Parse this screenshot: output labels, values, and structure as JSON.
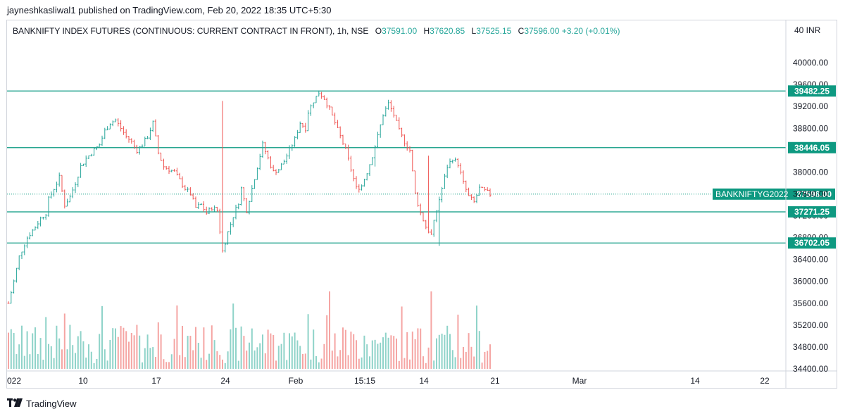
{
  "published": "jayneshkasliwal1 published on TradingView.com, Feb 20, 2022 18:35 UTC+5:30",
  "legend": {
    "symbol": "BANKNIFTY INDEX FUTURES (CONTINUOUS: CURRENT CONTRACT IN FRONT), 1h, NSE",
    "o_label": "O",
    "o": "37591.00",
    "h_label": "H",
    "h": "37620.85",
    "l_label": "L",
    "l": "37525.15",
    "c_label": "C",
    "c": "37596.00",
    "change": "+3.20 (+0.01%)"
  },
  "brand": "TradingView",
  "currency_top": "40 INR",
  "colors": {
    "up": "#26a69a",
    "down": "#ef5350",
    "line": "#089981",
    "label_bg": "#0e9981"
  },
  "chart_data": {
    "type": "candlestick",
    "title": "BANKNIFTY INDEX FUTURES (CONTINUOUS: CURRENT CONTRACT IN FRONT), 1h, NSE",
    "ylim": [
      34400,
      40400
    ],
    "y_ticks": [
      "40000.00",
      "39600.00",
      "39200.00",
      "38800.00",
      "38400.00",
      "38000.00",
      "37600.00",
      "37200.00",
      "36800.00",
      "36400.00",
      "36000.00",
      "35600.00",
      "35200.00",
      "34800.00",
      "34400.00"
    ],
    "x_ticks": [
      "022",
      "10",
      "17",
      "24",
      "Feb",
      "15:15",
      "14",
      "21",
      "Mar",
      "14",
      "22"
    ],
    "horizontal_levels": [
      {
        "label": "39482.25",
        "value": 39482.25
      },
      {
        "label": "38446.05",
        "value": 38446.05
      },
      {
        "label": "37271.25",
        "value": 37271.25
      },
      {
        "label": "36702.05",
        "value": 36702.05
      }
    ],
    "current_price": {
      "symbol": "BANKNIFTYG2022",
      "value": 37596.0,
      "label": "37596.00"
    },
    "price_path": [
      [
        0,
        35600
      ],
      [
        2,
        36000
      ],
      [
        4,
        36450
      ],
      [
        7,
        36800
      ],
      [
        10,
        37000
      ],
      [
        12,
        37150
      ],
      [
        14,
        37250
      ],
      [
        15,
        37500
      ],
      [
        17,
        37700
      ],
      [
        19,
        37900
      ],
      [
        21,
        37400
      ],
      [
        23,
        37550
      ],
      [
        25,
        37800
      ],
      [
        27,
        38100
      ],
      [
        29,
        38250
      ],
      [
        31,
        38350
      ],
      [
        34,
        38500
      ],
      [
        36,
        38750
      ],
      [
        38,
        38900
      ],
      [
        40,
        38950
      ],
      [
        42,
        38800
      ],
      [
        44,
        38650
      ],
      [
        46,
        38550
      ],
      [
        48,
        38400
      ],
      [
        50,
        38500
      ],
      [
        52,
        38650
      ],
      [
        54,
        38900
      ],
      [
        56,
        38350
      ],
      [
        58,
        38100
      ],
      [
        60,
        38050
      ],
      [
        62,
        38000
      ],
      [
        64,
        37850
      ],
      [
        66,
        37700
      ],
      [
        68,
        37600
      ],
      [
        70,
        37350
      ],
      [
        72,
        37400
      ],
      [
        74,
        37250
      ],
      [
        76,
        37350
      ],
      [
        78,
        37300
      ],
      [
        80,
        36550
      ],
      [
        82,
        36900
      ],
      [
        84,
        37200
      ],
      [
        86,
        37450
      ],
      [
        87,
        37700
      ],
      [
        89,
        37300
      ],
      [
        91,
        37700
      ],
      [
        93,
        38100
      ],
      [
        95,
        38500
      ],
      [
        97,
        38250
      ],
      [
        99,
        38000
      ],
      [
        101,
        38050
      ],
      [
        103,
        38200
      ],
      [
        105,
        38400
      ],
      [
        107,
        38600
      ],
      [
        109,
        38900
      ],
      [
        111,
        38800
      ],
      [
        112,
        39100
      ],
      [
        114,
        39300
      ],
      [
        116,
        39450
      ],
      [
        118,
        39350
      ],
      [
        120,
        39150
      ],
      [
        122,
        38900
      ],
      [
        124,
        38650
      ],
      [
        126,
        38400
      ],
      [
        128,
        38050
      ],
      [
        130,
        37700
      ],
      [
        132,
        37750
      ],
      [
        134,
        38000
      ],
      [
        136,
        38300
      ],
      [
        138,
        38650
      ],
      [
        140,
        39050
      ],
      [
        142,
        39250
      ],
      [
        144,
        39050
      ],
      [
        146,
        38750
      ],
      [
        148,
        38550
      ],
      [
        150,
        38400
      ],
      [
        152,
        37600
      ],
      [
        154,
        37250
      ],
      [
        156,
        37000
      ],
      [
        158,
        36850
      ],
      [
        160,
        37300
      ],
      [
        162,
        37700
      ],
      [
        164,
        38100
      ],
      [
        166,
        38250
      ],
      [
        168,
        38150
      ],
      [
        170,
        37800
      ],
      [
        172,
        37550
      ],
      [
        174,
        37450
      ],
      [
        176,
        37700
      ],
      [
        178,
        37650
      ],
      [
        180,
        37596
      ]
    ],
    "spikes": [
      [
        80,
        39300
      ],
      [
        112,
        38750
      ],
      [
        137,
        38100
      ],
      [
        157,
        38300
      ],
      [
        161,
        36650
      ]
    ],
    "volume_scale": [
      0,
      1
    ]
  }
}
